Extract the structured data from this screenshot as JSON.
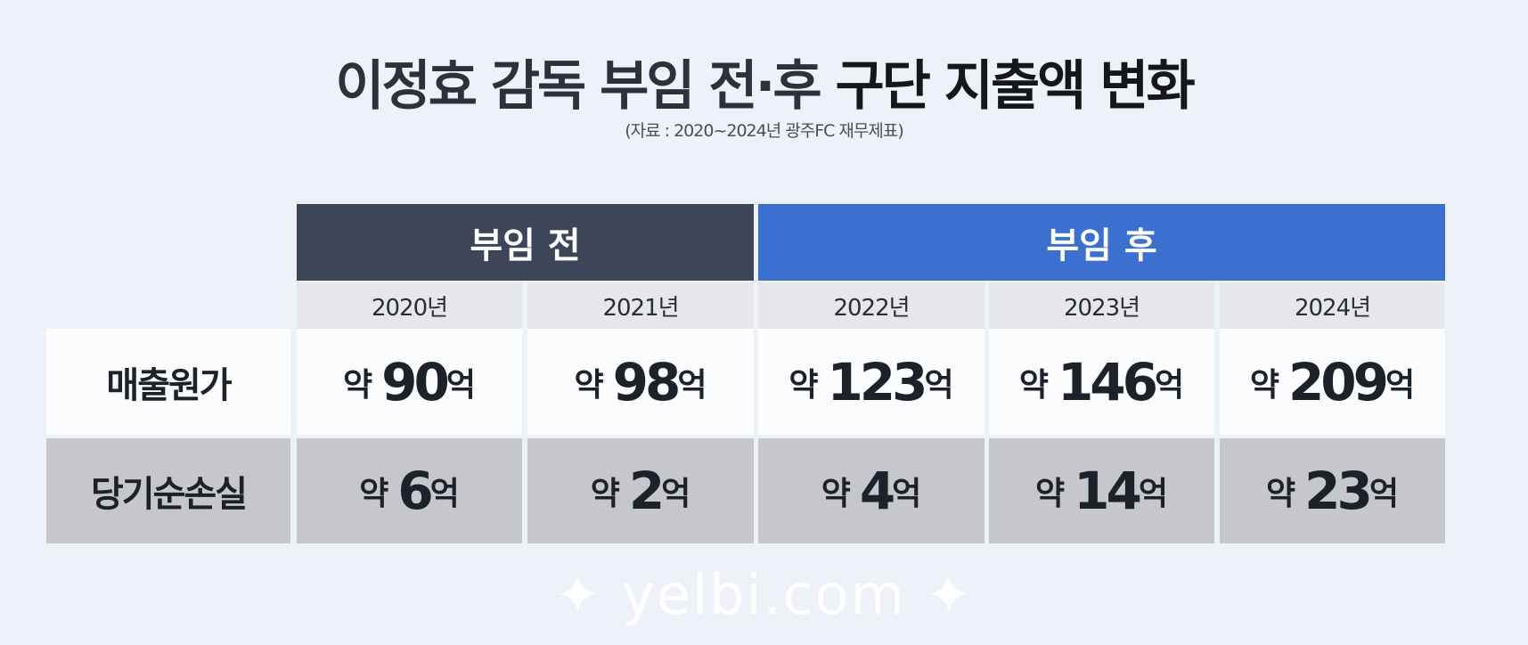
{
  "title": {
    "part1": "이정효 감독 부임 전·후",
    "part2": "구단 지출액 변화"
  },
  "subtitle": "(자료 : 2020~2024년 광주FC 재무제표)",
  "groups": [
    {
      "label": "부임 전",
      "color": "#3d4658"
    },
    {
      "label": "부임 후",
      "color": "#3b6fd0"
    }
  ],
  "years": [
    "2020년",
    "2021년",
    "2022년",
    "2023년",
    "2024년"
  ],
  "rows": [
    {
      "label": "매출원가",
      "prefix": "약",
      "unit": "억",
      "values": [
        "90",
        "98",
        "123",
        "146",
        "209"
      ]
    },
    {
      "label": "당기순손실",
      "prefix": "약",
      "unit": "억",
      "values": [
        "6",
        "2",
        "4",
        "14",
        "23"
      ]
    }
  ],
  "watermark": "✦ yelbi.com ✦"
}
